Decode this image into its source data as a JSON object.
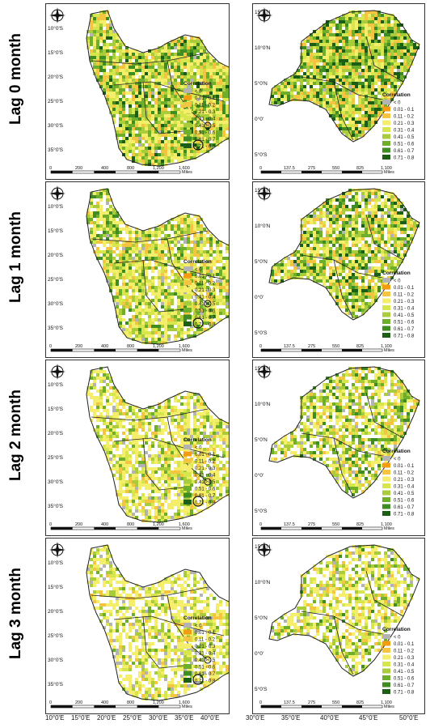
{
  "row_labels": [
    "Lag 0 month",
    "Lag 1 month",
    "Lag 2 month",
    "Lag 3 month"
  ],
  "legend": {
    "title": "Correlation",
    "classes": [
      {
        "label": "< 0",
        "color": "#b3b3b3"
      },
      {
        "label": "0.01 - 0.1",
        "color": "#f39c12"
      },
      {
        "label": "0.11 - 0.2",
        "color": "#f5c542"
      },
      {
        "label": "0.21 - 0.3",
        "color": "#f4ee6a"
      },
      {
        "label": "0.31 - 0.4",
        "color": "#d6e64c"
      },
      {
        "label": "0.41 - 0.5",
        "color": "#a8cc3a"
      },
      {
        "label": "0.51 - 0.6",
        "color": "#6fae2b"
      },
      {
        "label": "0.61 - 0.7",
        "color": "#3e8c22"
      },
      {
        "label": "0.71 - 0.8",
        "color": "#1b5e16"
      }
    ]
  },
  "southern_africa": {
    "lat_labels": [
      "10°0'S",
      "15°0'S",
      "20°0'S",
      "25°0'S",
      "30°0'S",
      "35°0'S"
    ],
    "lon_labels": [
      "10°0'E",
      "15°0'E",
      "20°0'E",
      "25°0'E",
      "30°0'E",
      "35°0'E",
      "40°0'E"
    ],
    "scale_labels": [
      "0",
      "200",
      "400",
      "800",
      "1,200",
      "1,600"
    ],
    "scale_unit": "Miles"
  },
  "east_africa": {
    "lat_labels": [
      "15°0'N",
      "10°0'N",
      "5°0'N",
      "0°0'",
      "5°0'S"
    ],
    "lon_labels": [
      "30°0'E",
      "35°0'E",
      "40°0'E",
      "45°0'E",
      "50°0'E"
    ],
    "scale_labels": [
      "0",
      "137.5",
      "275",
      "550",
      "825",
      "1,100"
    ],
    "scale_unit": "Miles"
  },
  "north_arrow": {
    "letters": [
      "N",
      "S",
      "E",
      "W"
    ]
  }
}
